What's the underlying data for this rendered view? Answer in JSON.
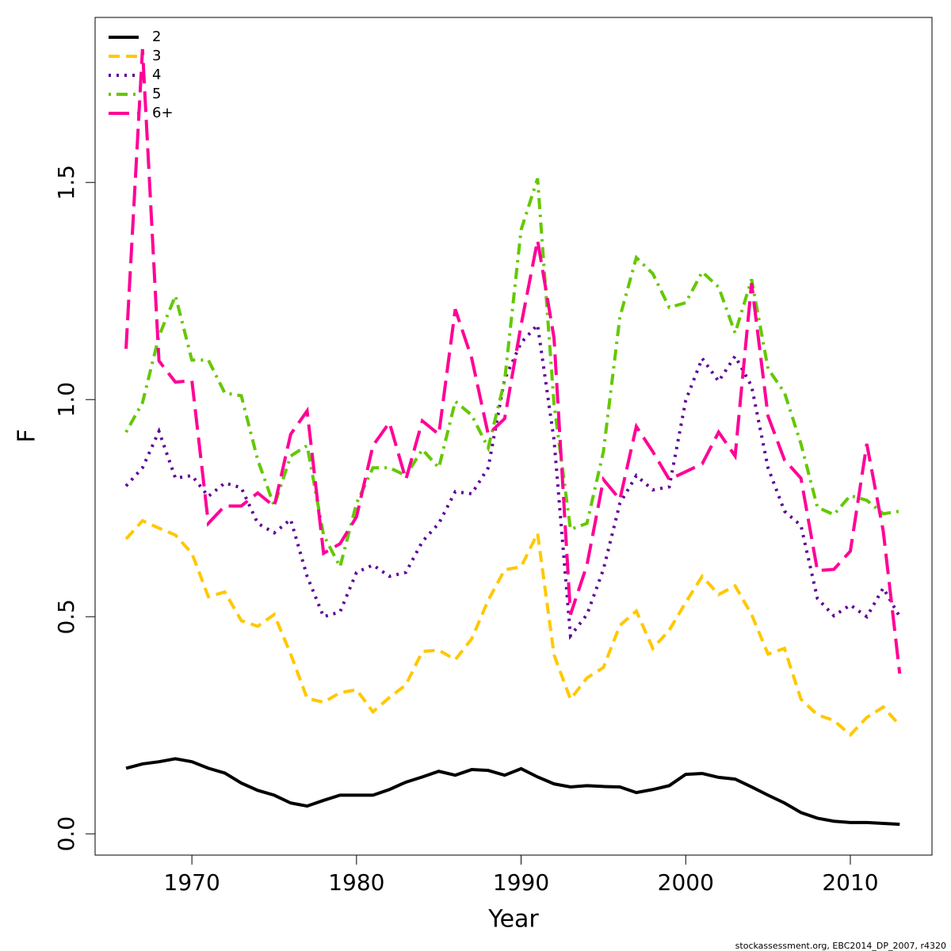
{
  "chart_data": {
    "type": "line",
    "x_label": "Year",
    "y_label": "F",
    "footnote": "stockassessment.org, EBC2014_DP_2007, r4320",
    "x": [
      1966,
      1967,
      1968,
      1969,
      1970,
      1971,
      1972,
      1973,
      1974,
      1975,
      1976,
      1977,
      1978,
      1979,
      1980,
      1981,
      1982,
      1983,
      1984,
      1985,
      1986,
      1987,
      1988,
      1989,
      1990,
      1991,
      1992,
      1993,
      1994,
      1995,
      1996,
      1997,
      1998,
      1999,
      2000,
      2001,
      2002,
      2003,
      2004,
      2005,
      2006,
      2007,
      2008,
      2009,
      2010,
      2011,
      2012,
      2013
    ],
    "xlim": [
      1964.12,
      2014.96
    ],
    "xticks": [
      1970,
      1980,
      1990,
      2000,
      2010
    ],
    "ylim": [
      -0.049,
      1.88
    ],
    "yticks": [
      {
        "value": 0,
        "label": "0.0"
      },
      0.5,
      {
        "value": 1,
        "label": "1.0"
      },
      1.5
    ],
    "legend": "topleft",
    "series": [
      {
        "name": "2",
        "color": "#000000",
        "linestyle": "solid",
        "values": [
          0.151,
          0.161,
          0.166,
          0.173,
          0.166,
          0.151,
          0.14,
          0.117,
          0.1,
          0.089,
          0.071,
          0.064,
          0.077,
          0.089,
          0.089,
          0.089,
          0.102,
          0.119,
          0.131,
          0.144,
          0.135,
          0.148,
          0.146,
          0.135,
          0.15,
          0.131,
          0.115,
          0.108,
          0.111,
          0.109,
          0.108,
          0.095,
          0.102,
          0.111,
          0.137,
          0.139,
          0.13,
          0.126,
          0.108,
          0.089,
          0.071,
          0.049,
          0.036,
          0.029,
          0.026,
          0.026,
          0.024,
          0.022
        ]
      },
      {
        "name": "3",
        "color": "#ffc800",
        "linestyle": "dashed",
        "values": [
          0.679,
          0.721,
          0.704,
          0.688,
          0.646,
          0.546,
          0.557,
          0.491,
          0.478,
          0.505,
          0.414,
          0.312,
          0.303,
          0.325,
          0.332,
          0.281,
          0.314,
          0.343,
          0.42,
          0.423,
          0.401,
          0.449,
          0.538,
          0.608,
          0.615,
          0.692,
          0.412,
          0.31,
          0.359,
          0.383,
          0.48,
          0.513,
          0.427,
          0.469,
          0.533,
          0.593,
          0.551,
          0.571,
          0.505,
          0.414,
          0.427,
          0.31,
          0.274,
          0.261,
          0.228,
          0.268,
          0.292,
          0.25
        ]
      },
      {
        "name": "4",
        "color": "#5f0096",
        "linestyle": "dotted",
        "values": [
          0.801,
          0.843,
          0.927,
          0.819,
          0.825,
          0.777,
          0.808,
          0.797,
          0.715,
          0.693,
          0.724,
          0.593,
          0.5,
          0.511,
          0.602,
          0.619,
          0.593,
          0.602,
          0.673,
          0.715,
          0.788,
          0.783,
          0.843,
          1.047,
          1.131,
          1.172,
          0.907,
          0.456,
          0.505,
          0.609,
          0.761,
          0.825,
          0.792,
          0.799,
          0.998,
          1.095,
          1.042,
          1.1,
          1.031,
          0.843,
          0.743,
          0.71,
          0.542,
          0.502,
          0.527,
          0.5,
          0.566,
          0.5
        ]
      },
      {
        "name": "5",
        "color": "#64c800",
        "linestyle": "dotdash",
        "values": [
          0.925,
          0.993,
          1.146,
          1.239,
          1.091,
          1.091,
          1.015,
          1.009,
          0.861,
          0.755,
          0.87,
          0.894,
          0.688,
          0.615,
          0.761,
          0.843,
          0.843,
          0.825,
          0.885,
          0.843,
          0.996,
          0.964,
          0.889,
          1.044,
          1.391,
          1.509,
          0.989,
          0.701,
          0.715,
          0.88,
          1.19,
          1.327,
          1.29,
          1.212,
          1.223,
          1.294,
          1.259,
          1.153,
          1.277,
          1.071,
          1.016,
          0.898,
          0.752,
          0.735,
          0.779,
          0.768,
          0.737,
          0.743
        ]
      },
      {
        "name": "6+",
        "color": "#ff0096",
        "linestyle": "longdash",
        "values": [
          1.117,
          1.807,
          1.089,
          1.04,
          1.044,
          0.715,
          0.755,
          0.755,
          0.785,
          0.754,
          0.92,
          0.974,
          0.646,
          0.668,
          0.73,
          0.894,
          0.947,
          0.816,
          0.951,
          0.92,
          1.208,
          1.095,
          0.92,
          0.956,
          1.172,
          1.367,
          1.142,
          0.505,
          0.619,
          0.816,
          0.77,
          0.938,
          0.88,
          0.816,
          0.834,
          0.852,
          0.925,
          0.87,
          1.268,
          0.962,
          0.861,
          0.819,
          0.606,
          0.609,
          0.651,
          0.898,
          0.697,
          0.369
        ]
      }
    ]
  }
}
